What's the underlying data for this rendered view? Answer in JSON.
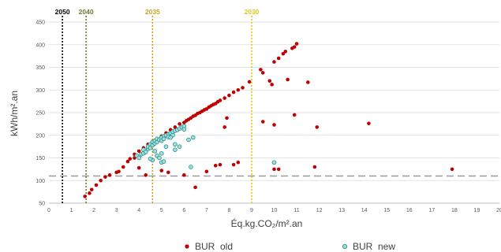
{
  "colors": {
    "old": "#c00000",
    "new_fill": "#9fe0dd",
    "new_stroke": "#2b8a86",
    "grid": "#d9d9d9",
    "hline": "#9a9a9a"
  },
  "chart_data": {
    "type": "scatter",
    "title": "",
    "xlabel": "Éq.kg.CO₂/m².an",
    "ylabel": "kWh/m².an",
    "xlim": [
      0,
      20
    ],
    "ylim": [
      50,
      450
    ],
    "xticks": [
      "0",
      "1",
      "2",
      "3",
      "4",
      "5",
      "6",
      "7",
      "8",
      "9",
      "10",
      "11",
      "12",
      "13",
      "14",
      "15",
      "16",
      "17",
      "18",
      "19",
      "20"
    ],
    "yticks": [
      "50",
      "100",
      "150",
      "200",
      "250",
      "300",
      "350",
      "400",
      "450"
    ],
    "grid": "horizontal",
    "legend_position": "bottom",
    "threshold_lines": [
      {
        "label": "2050",
        "x": 0.6,
        "color": "#000000"
      },
      {
        "label": "2040",
        "x": 1.65,
        "color": "#6f7a2a"
      },
      {
        "label": "2035",
        "x": 4.6,
        "color": "#c9a321"
      },
      {
        "label": "2030",
        "x": 9.0,
        "color": "#d9cc1a"
      }
    ],
    "reference_line_y": 110,
    "series": [
      {
        "name": "BUR  old",
        "points": [
          [
            1.6,
            65
          ],
          [
            1.8,
            72
          ],
          [
            1.9,
            80
          ],
          [
            2.1,
            90
          ],
          [
            2.3,
            100
          ],
          [
            2.5,
            108
          ],
          [
            2.7,
            112
          ],
          [
            3.0,
            118
          ],
          [
            3.1,
            120
          ],
          [
            3.3,
            130
          ],
          [
            3.5,
            142
          ],
          [
            3.6,
            148
          ],
          [
            3.8,
            158
          ],
          [
            4.0,
            165
          ],
          [
            4.2,
            172
          ],
          [
            4.4,
            180
          ],
          [
            4.6,
            186
          ],
          [
            4.8,
            192
          ],
          [
            5.0,
            198
          ],
          [
            5.2,
            205
          ],
          [
            5.4,
            212
          ],
          [
            5.6,
            218
          ],
          [
            5.8,
            225
          ],
          [
            6.0,
            228
          ],
          [
            6.1,
            232
          ],
          [
            6.2,
            235
          ],
          [
            6.3,
            238
          ],
          [
            6.4,
            242
          ],
          [
            6.5,
            244
          ],
          [
            6.6,
            248
          ],
          [
            6.7,
            250
          ],
          [
            6.8,
            253
          ],
          [
            6.9,
            256
          ],
          [
            7.0,
            258
          ],
          [
            7.1,
            262
          ],
          [
            7.2,
            265
          ],
          [
            7.3,
            268
          ],
          [
            7.4,
            270
          ],
          [
            7.5,
            274
          ],
          [
            7.6,
            277
          ],
          [
            7.8,
            282
          ],
          [
            8.0,
            288
          ],
          [
            8.2,
            295
          ],
          [
            8.4,
            300
          ],
          [
            8.6,
            305
          ],
          [
            8.9,
            318
          ],
          [
            9.4,
            345
          ],
          [
            9.5,
            338
          ],
          [
            9.8,
            320
          ],
          [
            9.9,
            312
          ],
          [
            10.0,
            362
          ],
          [
            10.2,
            370
          ],
          [
            10.4,
            380
          ],
          [
            10.5,
            385
          ],
          [
            10.8,
            392
          ],
          [
            10.9,
            395
          ],
          [
            11.0,
            402
          ],
          [
            10.6,
            323
          ],
          [
            11.5,
            317
          ],
          [
            3.8,
            150
          ],
          [
            4.0,
            128
          ],
          [
            4.3,
            112
          ],
          [
            4.6,
            145
          ],
          [
            5.0,
            122
          ],
          [
            5.3,
            118
          ],
          [
            6.0,
            112
          ],
          [
            6.5,
            85
          ],
          [
            7.0,
            120
          ],
          [
            7.4,
            133
          ],
          [
            7.6,
            135
          ],
          [
            7.8,
            218
          ],
          [
            7.9,
            238
          ],
          [
            8.2,
            135
          ],
          [
            8.4,
            140
          ],
          [
            9.5,
            230
          ],
          [
            10.0,
            223
          ],
          [
            10.0,
            125
          ],
          [
            10.2,
            125
          ],
          [
            10.9,
            245
          ],
          [
            11.8,
            130
          ],
          [
            11.9,
            218
          ],
          [
            14.2,
            226
          ],
          [
            17.9,
            125
          ]
        ]
      },
      {
        "name": "BUR  new",
        "points": [
          [
            3.9,
            155
          ],
          [
            4.0,
            150
          ],
          [
            4.1,
            158
          ],
          [
            4.2,
            160
          ],
          [
            4.2,
            168
          ],
          [
            4.3,
            163
          ],
          [
            4.4,
            170
          ],
          [
            4.4,
            175
          ],
          [
            4.5,
            172
          ],
          [
            4.5,
            180
          ],
          [
            4.6,
            178
          ],
          [
            4.6,
            185
          ],
          [
            4.7,
            182
          ],
          [
            4.7,
            188
          ],
          [
            4.8,
            185
          ],
          [
            4.8,
            192
          ],
          [
            4.9,
            190
          ],
          [
            5.0,
            195
          ],
          [
            5.0,
            188
          ],
          [
            5.1,
            198
          ],
          [
            5.1,
            192
          ],
          [
            5.2,
            200
          ],
          [
            5.3,
            202
          ],
          [
            5.3,
            196
          ],
          [
            5.4,
            205
          ],
          [
            5.5,
            208
          ],
          [
            5.5,
            200
          ],
          [
            5.6,
            210
          ],
          [
            5.7,
            212
          ],
          [
            5.8,
            215
          ],
          [
            5.9,
            218
          ],
          [
            6.0,
            220
          ],
          [
            6.0,
            213
          ],
          [
            5.6,
            180
          ],
          [
            5.8,
            175
          ],
          [
            5.2,
            175
          ],
          [
            4.7,
            165
          ],
          [
            4.8,
            155
          ],
          [
            5.0,
            160
          ],
          [
            4.6,
            145
          ],
          [
            4.5,
            148
          ],
          [
            4.9,
            150
          ],
          [
            5.0,
            140
          ],
          [
            5.1,
            142
          ],
          [
            5.6,
            168
          ],
          [
            6.2,
            190
          ],
          [
            6.4,
            195
          ],
          [
            6.3,
            130
          ],
          [
            5.4,
            195
          ],
          [
            10.0,
            140
          ]
        ]
      }
    ]
  }
}
